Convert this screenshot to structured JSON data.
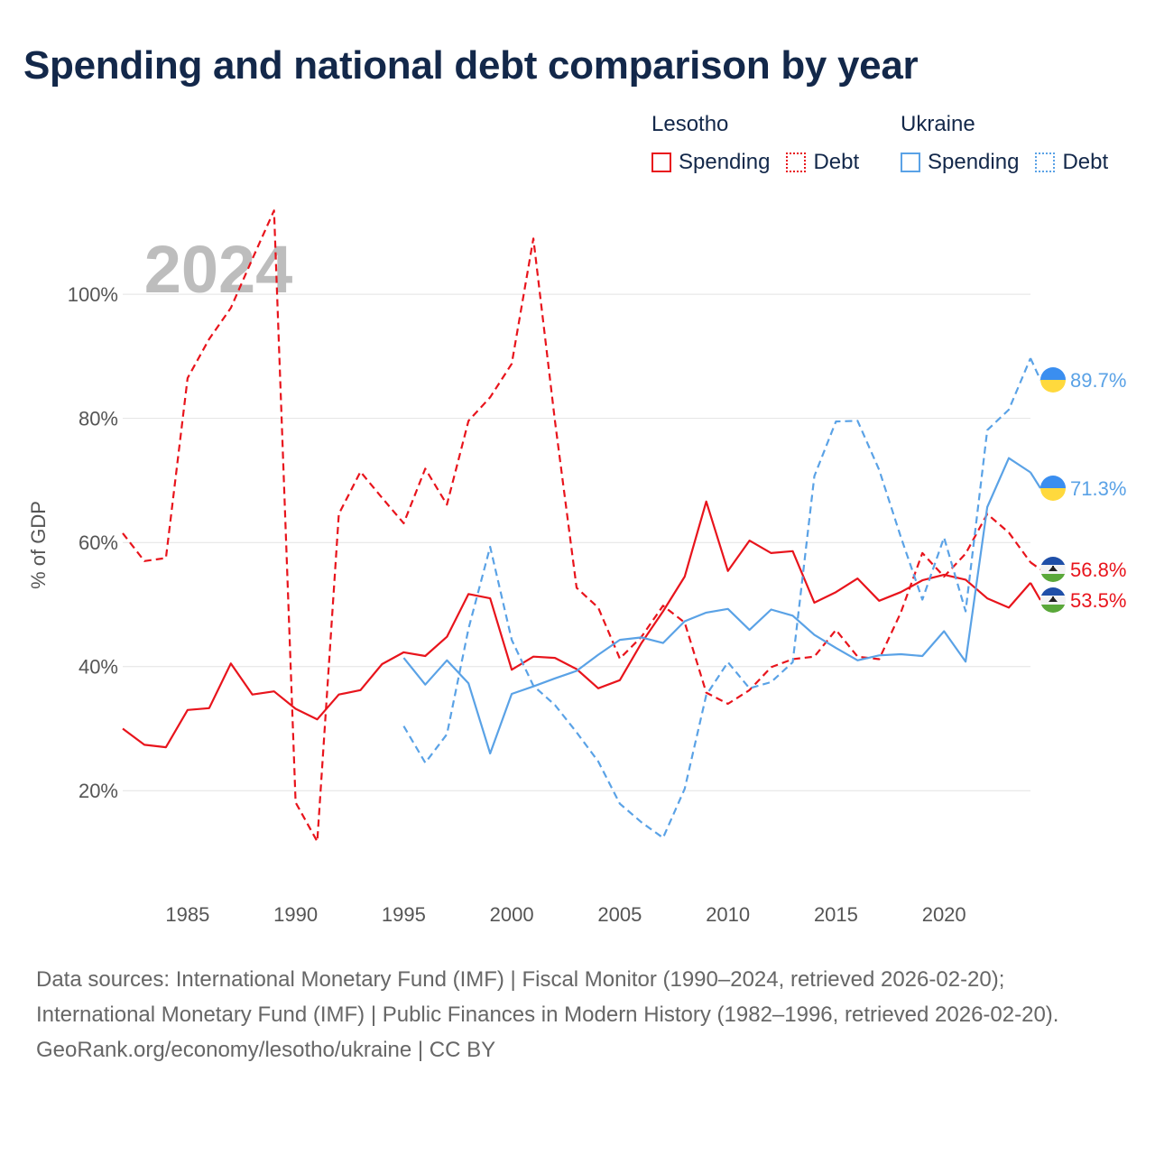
{
  "title": "Spending and national debt comparison by year",
  "legend": {
    "lesotho": {
      "name": "Lesotho",
      "spending": "Spending",
      "debt": "Debt",
      "color": "#e8141c"
    },
    "ukraine": {
      "name": "Ukraine",
      "spending": "Spending",
      "debt": "Debt",
      "color": "#5aa2e6"
    }
  },
  "sources": {
    "line1": "Data sources: International Monetary Fund (IMF) | Fiscal Monitor (1990–2024, retrieved 2026-02-20); International Monetary Fund (IMF) | Public Finances in Modern History (1982–1996, retrieved 2026-02-20).",
    "line2": "GeoRank.org/economy/lesotho/ukraine | CC BY"
  },
  "chart_data": {
    "type": "line",
    "year_label": "2024",
    "ylabel": "% of GDP",
    "xlim": [
      1982,
      2024
    ],
    "ylim": [
      10,
      115
    ],
    "x_ticks": [
      1985,
      1990,
      1995,
      2000,
      2005,
      2010,
      2015,
      2020
    ],
    "y_ticks": [
      20,
      40,
      60,
      80,
      100
    ],
    "y_tick_labels": [
      "20%",
      "40%",
      "60%",
      "80%",
      "100%"
    ],
    "series": [
      {
        "name": "Lesotho Spending",
        "country": "Lesotho",
        "style": "solid",
        "color": "#e8141c",
        "end_label": "53.5%",
        "flag": "lesotho",
        "x": [
          1982,
          1983,
          1984,
          1985,
          1986,
          1987,
          1988,
          1989,
          1990,
          1991,
          1992,
          1993,
          1994,
          1995,
          1996,
          1997,
          1998,
          1999,
          2000,
          2001,
          2002,
          2003,
          2004,
          2005,
          2006,
          2007,
          2008,
          2009,
          2010,
          2011,
          2012,
          2013,
          2014,
          2015,
          2016,
          2017,
          2018,
          2019,
          2020,
          2021,
          2022,
          2023,
          2024
        ],
        "y": [
          30,
          27.4,
          27,
          33,
          33.3,
          40.5,
          35.5,
          36,
          33.2,
          31.5,
          35.5,
          36.2,
          40.4,
          42.3,
          41.7,
          44.8,
          51.7,
          51,
          39.5,
          41.6,
          41.4,
          39.6,
          36.5,
          37.8,
          43.8,
          48.9,
          54.5,
          66.6,
          55.4,
          60.3,
          58.3,
          58.6,
          50.3,
          52,
          54.2,
          50.6,
          52,
          53.9,
          54.8,
          54,
          51,
          49.5,
          53.5
        ]
      },
      {
        "name": "Lesotho Debt",
        "country": "Lesotho",
        "style": "dashed",
        "color": "#e8141c",
        "end_label": "56.8%",
        "flag": "lesotho",
        "x": [
          1982,
          1983,
          1984,
          1985,
          1986,
          1987,
          1988,
          1989,
          1990,
          1991,
          1992,
          1993,
          1994,
          1995,
          1996,
          1997,
          1998,
          1999,
          2000,
          2001,
          2002,
          2003,
          2004,
          2005,
          2006,
          2007,
          2008,
          2009,
          2010,
          2011,
          2012,
          2013,
          2014,
          2015,
          2016,
          2017,
          2018,
          2019,
          2020,
          2021,
          2022,
          2023,
          2024
        ],
        "y": [
          61.5,
          57,
          57.5,
          86.5,
          92.8,
          97.8,
          105.7,
          113.5,
          18.1,
          11.8,
          64.6,
          71.4,
          67.2,
          63.1,
          71.9,
          66.1,
          79.6,
          83.4,
          88.8,
          109,
          79.6,
          52.7,
          49.5,
          41.3,
          44.8,
          49.8,
          47.1,
          35.8,
          34,
          36.2,
          39.9,
          41.2,
          41.6,
          45.9,
          41.6,
          41.2,
          48.7,
          58.3,
          54.5,
          58.2,
          64.6,
          61.6,
          56.8
        ]
      },
      {
        "name": "Ukraine Spending",
        "country": "Ukraine",
        "style": "solid",
        "color": "#5aa2e6",
        "end_label": "71.3%",
        "flag": "ukraine",
        "x": [
          1995,
          1996,
          1997,
          1998,
          1999,
          2000,
          2001,
          2002,
          2003,
          2004,
          2005,
          2006,
          2007,
          2008,
          2009,
          2010,
          2011,
          2012,
          2013,
          2014,
          2015,
          2016,
          2017,
          2018,
          2019,
          2020,
          2021,
          2022,
          2023,
          2024
        ],
        "y": [
          41.4,
          37.1,
          41,
          37.3,
          26,
          35.6,
          36.8,
          38.1,
          39.3,
          41.9,
          44.3,
          44.7,
          43.8,
          47.3,
          48.7,
          49.3,
          45.9,
          49.2,
          48.2,
          45.1,
          43,
          41,
          41.8,
          42,
          41.7,
          45.7,
          40.8,
          65.7,
          73.6,
          71.3
        ]
      },
      {
        "name": "Ukraine Debt",
        "country": "Ukraine",
        "style": "dashed",
        "color": "#5aa2e6",
        "end_label": "89.7%",
        "flag": "ukraine",
        "x": [
          1995,
          1996,
          1997,
          1998,
          1999,
          2000,
          2001,
          2002,
          2003,
          2004,
          2005,
          2006,
          2007,
          2008,
          2009,
          2010,
          2011,
          2012,
          2013,
          2014,
          2015,
          2016,
          2017,
          2018,
          2019,
          2020,
          2021,
          2022,
          2023,
          2024
        ],
        "y": [
          30.4,
          24.5,
          29.1,
          46.1,
          59.3,
          44.3,
          36.9,
          33.8,
          29.4,
          24.7,
          17.9,
          14.9,
          12.4,
          20.3,
          35.4,
          40.7,
          36.5,
          37.5,
          40.7,
          70.7,
          79.5,
          79.6,
          71.7,
          60.9,
          50.8,
          60.8,
          48.9,
          78.1,
          81.4,
          89.7
        ]
      }
    ]
  }
}
